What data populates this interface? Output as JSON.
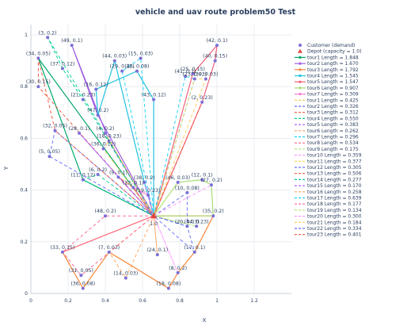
{
  "chart_data": {
    "type": "scatter",
    "title": "vehicle and uav route problem50 Test",
    "xlabel": "X",
    "ylabel": "Y",
    "xlim": [
      0,
      1.4
    ],
    "ylim": [
      0,
      1.04
    ],
    "x_ticks": [
      "0",
      "0.2",
      "0.4",
      "0.6",
      "0.8",
      "1",
      "1.2"
    ],
    "y_ticks": [
      "0",
      "0.2",
      "0.4",
      "0.6",
      "0.8",
      "1"
    ],
    "grid": true,
    "legend_position": "right",
    "depot": {
      "x": 0.66,
      "y": 0.3,
      "label": "1.0",
      "legend": "Depot (capacity = 1.0)"
    },
    "customers_legend": "Customer (demand)",
    "customers": [
      {
        "label": "(3, 0.2)",
        "x": 0.09,
        "y": 0.99
      },
      {
        "label": "(49, 0.1)",
        "x": 0.22,
        "y": 0.96
      },
      {
        "label": "(42, 0.1)",
        "x": 1.0,
        "y": 0.96
      },
      {
        "label": "(34, 0.05)",
        "x": 0.04,
        "y": 0.91
      },
      {
        "label": "(37, 0.12)",
        "x": 0.17,
        "y": 0.87
      },
      {
        "label": "(44, 0.03)",
        "x": 0.45,
        "y": 0.9
      },
      {
        "label": "(15, 0.03)",
        "x": 0.59,
        "y": 0.91
      },
      {
        "label": "(29, 0.12)",
        "x": 0.49,
        "y": 0.86
      },
      {
        "label": "(45, 0.08)",
        "x": 0.57,
        "y": 0.86
      },
      {
        "label": "(40, 0.15)",
        "x": 0.99,
        "y": 0.9
      },
      {
        "label": "(25, 0.15)",
        "x": 0.87,
        "y": 0.85
      },
      {
        "label": "(41, 0.1)",
        "x": 0.83,
        "y": 0.84
      },
      {
        "label": "(23, 0.03)",
        "x": 0.88,
        "y": 0.83
      },
      {
        "label": "(39, 0.03)",
        "x": 0.94,
        "y": 0.83
      },
      {
        "label": "(30, 0.15)",
        "x": 0.04,
        "y": 0.8
      },
      {
        "label": "(16, 0.12)",
        "x": 0.35,
        "y": 0.79
      },
      {
        "label": "(21, 0.23)",
        "x": 0.28,
        "y": 0.75
      },
      {
        "label": "(43, 0.12)",
        "x": 0.66,
        "y": 0.75
      },
      {
        "label": "(2, 0.23)",
        "x": 0.92,
        "y": 0.74
      },
      {
        "label": "(47, 0.2)",
        "x": 0.36,
        "y": 0.69
      },
      {
        "label": "(32, 0.05)",
        "x": 0.13,
        "y": 0.63
      },
      {
        "label": "(28, 0.1)",
        "x": 0.26,
        "y": 0.62
      },
      {
        "label": "(4, 0.2)",
        "x": 0.4,
        "y": 0.62
      },
      {
        "label": "(18, 0.23)",
        "x": 0.42,
        "y": 0.59
      },
      {
        "label": "(36, 0.12)",
        "x": 0.39,
        "y": 0.56
      },
      {
        "label": "(5, 0.05)",
        "x": 0.1,
        "y": 0.53
      },
      {
        "label": "(6, 0.2)",
        "x": 0.36,
        "y": 0.46
      },
      {
        "label": "(11, 0.12)",
        "x": 0.28,
        "y": 0.44
      },
      {
        "label": "(9, 0.1)",
        "x": 0.47,
        "y": 0.45
      },
      {
        "label": "(22, 0.1)",
        "x": 0.55,
        "y": 0.41
      },
      {
        "label": "(38, 0.2)",
        "x": 0.61,
        "y": 0.43
      },
      {
        "label": "(19, 0.23)",
        "x": 0.63,
        "y": 0.38
      },
      {
        "label": "(46, 0.03)",
        "x": 0.79,
        "y": 0.43
      },
      {
        "label": "(12, 0.1)",
        "x": 0.92,
        "y": 0.44
      },
      {
        "label": "(27, 0.2)",
        "x": 0.97,
        "y": 0.42
      },
      {
        "label": "(10, 0.08)",
        "x": 0.84,
        "y": 0.39
      },
      {
        "label": "(35, 0.2)",
        "x": 0.98,
        "y": 0.3
      },
      {
        "label": "(20, 0.03)",
        "x": 0.84,
        "y": 0.26
      },
      {
        "label": "(44, 0.23)",
        "x": 0.89,
        "y": 0.26
      },
      {
        "label": "(48, 0.2)",
        "x": 0.4,
        "y": 0.3
      },
      {
        "label": "(33, 0.15)",
        "x": 0.17,
        "y": 0.16
      },
      {
        "label": "(7, 0.03)",
        "x": 0.42,
        "y": 0.16
      },
      {
        "label": "(17, 0.1)",
        "x": 0.88,
        "y": 0.16
      },
      {
        "label": "(24, 0.1)",
        "x": 0.68,
        "y": 0.15
      },
      {
        "label": "(8, 0.2)",
        "x": 0.79,
        "y": 0.08
      },
      {
        "label": "(14, 0.03)",
        "x": 0.51,
        "y": 0.06
      },
      {
        "label": "(31, 0.05)",
        "x": 0.27,
        "y": 0.07
      },
      {
        "label": "(36, 0.08)",
        "x": 0.28,
        "y": 0.02
      },
      {
        "label": "(18, 0.08)",
        "x": 0.74,
        "y": 0.02
      }
    ],
    "series": [
      {
        "name": "tour1 Length = 1.848",
        "color": "#00a86b",
        "dash": false,
        "points": [
          [
            0.66,
            0.3
          ],
          [
            0.04,
            0.91
          ],
          [
            0.28,
            0.44
          ],
          [
            0.66,
            0.3
          ]
        ]
      },
      {
        "name": "tour2 Length = 1.670",
        "color": "#9f5fe0",
        "dash": false,
        "points": [
          [
            0.66,
            0.3
          ],
          [
            0.42,
            0.59
          ],
          [
            0.22,
            0.96
          ],
          [
            0.36,
            0.69
          ],
          [
            0.66,
            0.3
          ]
        ]
      },
      {
        "name": "tour3 Length = 1.792",
        "color": "#f6873a",
        "dash": false,
        "points": [
          [
            0.66,
            0.3
          ],
          [
            0.17,
            0.16
          ],
          [
            0.28,
            0.02
          ],
          [
            0.42,
            0.16
          ],
          [
            0.74,
            0.02
          ],
          [
            0.79,
            0.08
          ],
          [
            0.88,
            0.16
          ],
          [
            0.98,
            0.3
          ],
          [
            0.66,
            0.3
          ]
        ]
      },
      {
        "name": "tour4 Length = 1.545",
        "color": "#22c3de",
        "dash": false,
        "points": [
          [
            0.66,
            0.3
          ],
          [
            0.61,
            0.43
          ],
          [
            0.45,
            0.9
          ],
          [
            0.36,
            0.69
          ],
          [
            0.35,
            0.79
          ],
          [
            0.57,
            0.86
          ],
          [
            0.66,
            0.75
          ],
          [
            0.66,
            0.3
          ]
        ]
      },
      {
        "name": "tour5 Length = 1.547",
        "color": "#f0607a",
        "dash": false,
        "points": [
          [
            0.66,
            0.3
          ],
          [
            0.92,
            0.74
          ],
          [
            0.99,
            0.9
          ],
          [
            1.0,
            0.96
          ],
          [
            0.87,
            0.85
          ],
          [
            0.66,
            0.3
          ]
        ]
      },
      {
        "name": "tour6 Length = 0.907",
        "color": "#a6dc75",
        "dash": false,
        "points": [
          [
            0.66,
            0.3
          ],
          [
            0.79,
            0.43
          ],
          [
            0.92,
            0.44
          ],
          [
            0.97,
            0.42
          ],
          [
            0.98,
            0.3
          ],
          [
            0.66,
            0.3
          ]
        ]
      },
      {
        "name": "tour7 Length = 0.309",
        "color": "#f77fd2",
        "dash": false,
        "points": [
          [
            0.66,
            0.3
          ],
          [
            0.55,
            0.41
          ],
          [
            0.63,
            0.38
          ],
          [
            0.66,
            0.3
          ]
        ]
      },
      {
        "name": "tour1 Length = 0.425",
        "color": "#f5c94a",
        "dash": true,
        "points": [
          [
            0.66,
            0.3
          ],
          [
            0.42,
            0.59
          ],
          [
            0.39,
            0.56
          ],
          [
            0.66,
            0.3
          ]
        ]
      },
      {
        "name": "tour2 Length = 0.326",
        "color": "#636efa",
        "dash": true,
        "points": [
          [
            0.66,
            0.3
          ],
          [
            0.84,
            0.39
          ],
          [
            0.84,
            0.26
          ],
          [
            0.66,
            0.3
          ]
        ]
      },
      {
        "name": "tour3 Length = 0.312",
        "color": "#ef553b",
        "dash": true,
        "points": [
          [
            0.66,
            0.3
          ],
          [
            0.47,
            0.45
          ],
          [
            0.55,
            0.41
          ],
          [
            0.66,
            0.3
          ]
        ]
      },
      {
        "name": "tour4 Length = 0.550",
        "color": "#00cc96",
        "dash": true,
        "points": [
          [
            0.66,
            0.3
          ],
          [
            0.36,
            0.46
          ],
          [
            0.28,
            0.44
          ],
          [
            0.66,
            0.3
          ]
        ]
      },
      {
        "name": "tour5 Length = 0.383",
        "color": "#ab63fa",
        "dash": true,
        "points": [
          [
            0.66,
            0.3
          ],
          [
            0.61,
            0.43
          ],
          [
            0.63,
            0.38
          ],
          [
            0.66,
            0.3
          ]
        ]
      },
      {
        "name": "tour6 Length = 0.262",
        "color": "#ffa15a",
        "dash": true,
        "points": [
          [
            0.66,
            0.3
          ],
          [
            0.68,
            0.15
          ],
          [
            0.66,
            0.3
          ]
        ]
      },
      {
        "name": "tour7 Length = 0.296",
        "color": "#19d3f3",
        "dash": true,
        "points": [
          [
            0.66,
            0.3
          ],
          [
            0.83,
            0.84
          ],
          [
            0.88,
            0.83
          ],
          [
            0.66,
            0.3
          ]
        ]
      },
      {
        "name": "tour8 Length = 0.534",
        "color": "#ff6692",
        "dash": true,
        "points": [
          [
            0.66,
            0.3
          ],
          [
            0.4,
            0.3
          ],
          [
            0.17,
            0.16
          ],
          [
            0.66,
            0.3
          ]
        ]
      },
      {
        "name": "tour9 Length = 0.175",
        "color": "#b6e880",
        "dash": true,
        "points": [
          [
            0.66,
            0.3
          ],
          [
            0.79,
            0.43
          ],
          [
            0.66,
            0.3
          ]
        ]
      },
      {
        "name": "tour10 Length = 0.359",
        "color": "#ff97ff",
        "dash": true,
        "points": [
          [
            0.66,
            0.3
          ],
          [
            0.97,
            0.42
          ],
          [
            0.66,
            0.3
          ]
        ]
      },
      {
        "name": "tour11 Length = 0.377",
        "color": "#fecb52",
        "dash": true,
        "points": [
          [
            0.66,
            0.3
          ],
          [
            0.94,
            0.83
          ],
          [
            0.88,
            0.83
          ],
          [
            0.66,
            0.3
          ]
        ]
      },
      {
        "name": "tour12 Length = 0.305",
        "color": "#636efa",
        "dash": true,
        "points": [
          [
            0.66,
            0.3
          ],
          [
            0.1,
            0.53
          ],
          [
            0.13,
            0.63
          ],
          [
            0.66,
            0.3
          ]
        ]
      },
      {
        "name": "tour13 Length = 0.506",
        "color": "#ef553b",
        "dash": true,
        "points": [
          [
            0.66,
            0.3
          ],
          [
            0.04,
            0.8
          ],
          [
            0.04,
            0.91
          ],
          [
            0.13,
            0.63
          ],
          [
            0.66,
            0.3
          ]
        ]
      },
      {
        "name": "tour14 Length = 0.277",
        "color": "#00cc96",
        "dash": true,
        "points": [
          [
            0.66,
            0.3
          ],
          [
            0.09,
            0.99
          ],
          [
            0.17,
            0.87
          ],
          [
            0.28,
            0.75
          ],
          [
            0.66,
            0.3
          ]
        ]
      },
      {
        "name": "tour15 Length = 0.170",
        "color": "#ab63fa",
        "dash": true,
        "points": [
          [
            0.66,
            0.3
          ],
          [
            0.26,
            0.62
          ],
          [
            0.66,
            0.3
          ]
        ]
      },
      {
        "name": "tour16 Length = 0.258",
        "color": "#ffa15a",
        "dash": true,
        "points": [
          [
            0.66,
            0.3
          ],
          [
            0.42,
            0.16
          ],
          [
            0.51,
            0.06
          ],
          [
            0.66,
            0.3
          ]
        ]
      },
      {
        "name": "tour17 Length = 0.639",
        "color": "#19d3f3",
        "dash": true,
        "points": [
          [
            0.66,
            0.3
          ],
          [
            0.49,
            0.86
          ],
          [
            0.59,
            0.91
          ],
          [
            0.66,
            0.3
          ]
        ]
      },
      {
        "name": "tour18 Length = 0.177",
        "color": "#ff6692",
        "dash": true,
        "points": [
          [
            0.66,
            0.3
          ],
          [
            0.27,
            0.07
          ],
          [
            0.17,
            0.16
          ],
          [
            0.66,
            0.3
          ]
        ]
      },
      {
        "name": "tour19 Length = 0.134",
        "color": "#b6e880",
        "dash": true,
        "points": [
          [
            0.66,
            0.3
          ],
          [
            0.89,
            0.26
          ],
          [
            0.66,
            0.3
          ]
        ]
      },
      {
        "name": "tour20 Length = 0.300",
        "color": "#ff97ff",
        "dash": true,
        "points": [
          [
            0.66,
            0.3
          ],
          [
            0.79,
            0.08
          ],
          [
            0.66,
            0.3
          ]
        ]
      },
      {
        "name": "tour21 Length = 0.184",
        "color": "#fecb52",
        "dash": true,
        "points": [
          [
            0.66,
            0.3
          ],
          [
            0.4,
            0.62
          ],
          [
            0.66,
            0.3
          ]
        ]
      },
      {
        "name": "tour22 Length = 0.334",
        "color": "#636efa",
        "dash": true,
        "points": [
          [
            0.66,
            0.3
          ],
          [
            0.84,
            0.26
          ],
          [
            0.88,
            0.16
          ],
          [
            0.66,
            0.3
          ]
        ]
      },
      {
        "name": "tour23 Length = 0.401",
        "color": "#ef553b",
        "dash": true,
        "points": [
          [
            0.66,
            0.3
          ],
          [
            0.92,
            0.74
          ],
          [
            0.66,
            0.3
          ]
        ]
      }
    ]
  }
}
